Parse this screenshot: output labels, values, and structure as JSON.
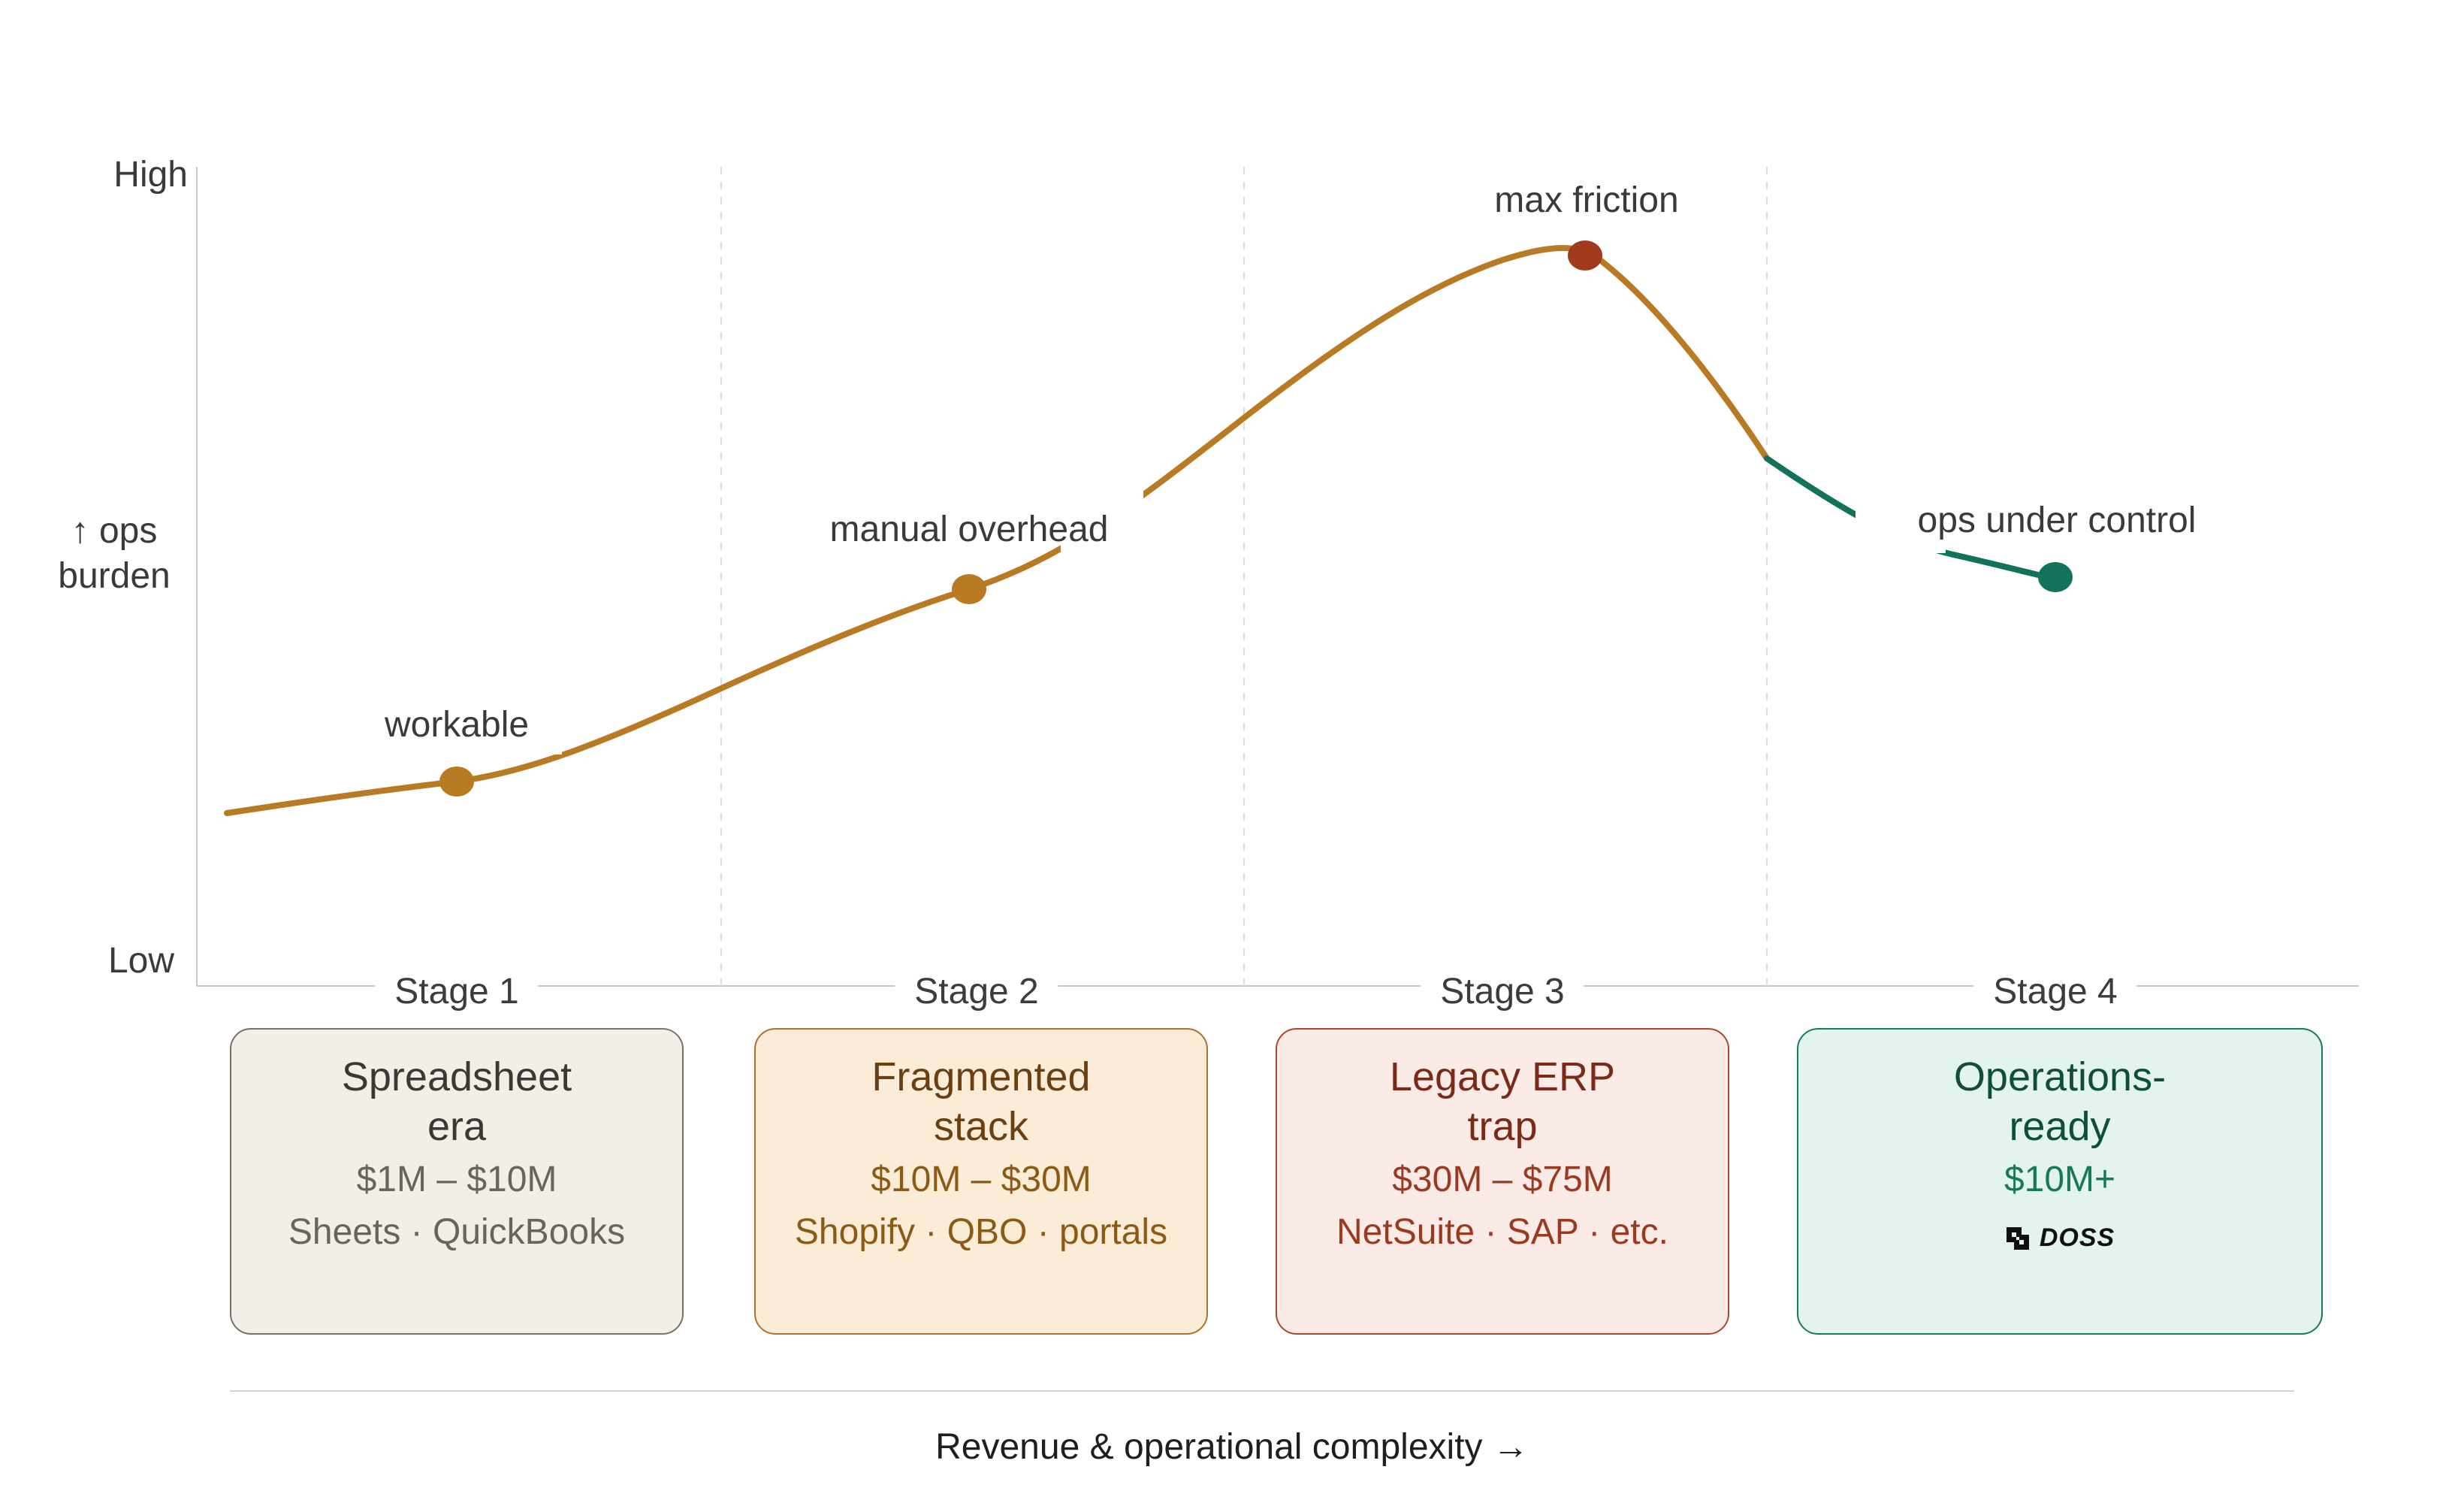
{
  "y_axis": {
    "top_label": "High",
    "mid_label_line1": "↑ ops",
    "mid_label_line2": "burden",
    "bottom_label": "Low"
  },
  "x_axis": {
    "label": "Revenue & operational complexity →"
  },
  "annotations": {
    "workable": "workable",
    "manual_overhead": "manual overhead",
    "max_friction": "max friction",
    "ops_under_control": "ops under control"
  },
  "stages": [
    {
      "label": "Stage 1",
      "title": "Spreadsheet\nera",
      "revenue": "$1M – $10M",
      "stack": "Sheets · QuickBooks",
      "bg": "#f2efe9",
      "border": "#7a7068",
      "title_color": "#3d3833",
      "text_color": "#6b645d"
    },
    {
      "label": "Stage 2",
      "title": "Fragmented\nstack",
      "revenue": "$10M – $30M",
      "stack": "Shopify · QBO · portals",
      "bg": "#fbecd7",
      "border": "#b2702a",
      "title_color": "#6a3f12",
      "text_color": "#8b5a14"
    },
    {
      "label": "Stage 3",
      "title": "Legacy ERP\ntrap",
      "revenue": "$30M – $75M",
      "stack": "NetSuite · SAP · etc.",
      "bg": "#fbebe6",
      "border": "#a8492e",
      "title_color": "#7a2a17",
      "text_color": "#9a3a20"
    },
    {
      "label": "Stage 4",
      "title": "Operations-\nready",
      "revenue": "$10M+",
      "logo_text": "DOSS",
      "bg": "#e3f4ec",
      "border": "#1b7a5b",
      "title_color": "#0f4e39",
      "text_color": "#17785a"
    }
  ],
  "colors": {
    "curve": "#b97a24",
    "curve_green": "#13735a",
    "peak_dot": "#a23a1c",
    "axis": "#c8c8c8",
    "gridline": "#dddddd"
  }
}
